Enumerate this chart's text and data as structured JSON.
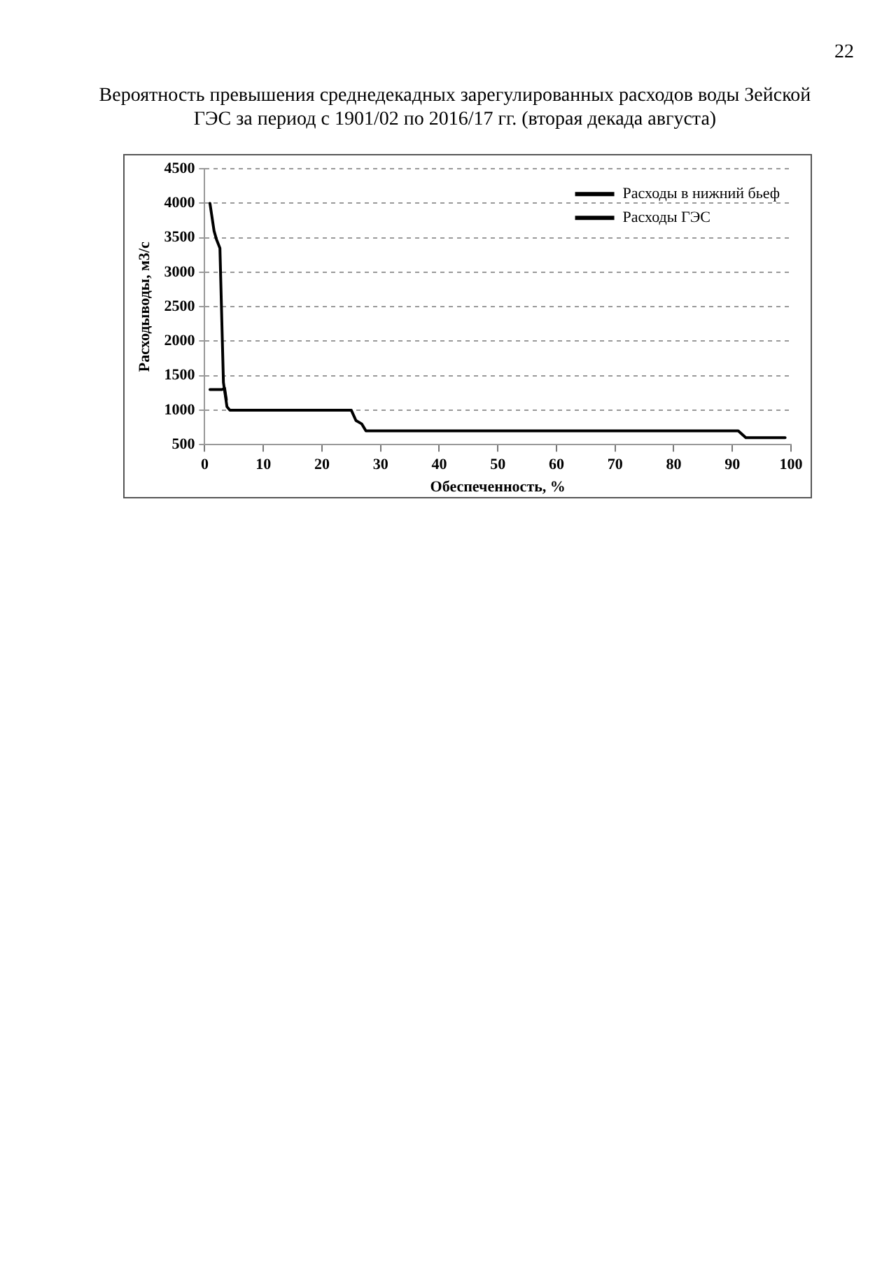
{
  "chart_data": {
    "type": "line",
    "title": "Вероятность превышения среднедекадных зарегулированных расходов воды Зейской ГЭС за период с 1901/02 по 2016/17 гг. (вторая декада августа)",
    "xlabel": "Обеспеченность, %",
    "ylabel": "Расходыводы, м3/с",
    "annotations": [
      "22"
    ],
    "series": [
      {
        "name": "Расходы в нижний бьеф",
        "color": "#000000",
        "x": [
          0.9,
          1.6,
          2,
          2.6,
          3.2,
          3.8,
          4.3,
          25,
          25.8,
          26.8,
          27.5,
          91,
          92.3,
          99
        ],
        "values": [
          4000,
          3600,
          3480,
          3350,
          1400,
          1050,
          1000,
          1000,
          850,
          800,
          700,
          700,
          600,
          600
        ]
      },
      {
        "name": "Расходы ГЭС",
        "color": "#000000",
        "x": [
          0.9,
          3,
          3.4,
          3.7
        ],
        "values": [
          1300,
          1300,
          1320,
          1150
        ]
      }
    ],
    "xlim": [
      0,
      100
    ],
    "xticks": [
      0,
      10,
      20,
      30,
      40,
      50,
      60,
      70,
      80,
      90,
      100
    ],
    "ylim": [
      500,
      4500
    ],
    "yticks": [
      500,
      1000,
      1500,
      2000,
      2500,
      3000,
      3500,
      4000,
      4500
    ],
    "grid": "y",
    "legend": "top right",
    "marker": "none",
    "line_style": "solid"
  }
}
